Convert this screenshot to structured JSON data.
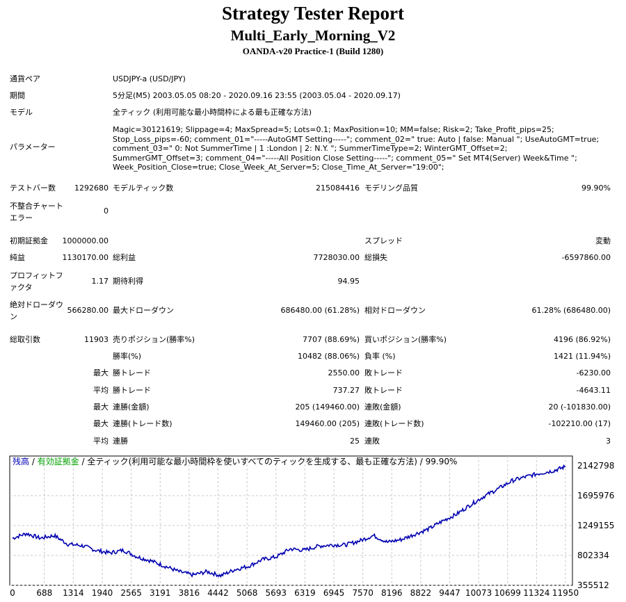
{
  "header": {
    "title": "Strategy Tester Report",
    "ea_name": "Multi_Early_Morning_V2",
    "server": "OANDA-v20 Practice-1 (Build 1280)"
  },
  "info": {
    "symbol_label": "通貨ペア",
    "symbol_value": "USDJPY-a (USD/JPY)",
    "period_label": "期間",
    "period_value": "5分足(M5) 2003.05.05 08:20 - 2020.09.16 23:55 (2003.05.04 - 2020.09.17)",
    "model_label": "モデル",
    "model_value": "全ティック (利用可能な最小時間枠による最も正確な方法)",
    "params_label": "パラメーター",
    "params_value": "Magic=30121619; Slippage=4; MaxSpread=5; Lots=0.1; MaxPosition=10; MM=false; Risk=2; Take_Profit_pips=25; Stop_Loss_pips=-60; comment_01=\"-----AutoGMT Setting-----\"; comment_02=\" true: Auto | false: Manual \"; UseAutoGMT=true; comment_03=\" 0: Not SummerTime | 1 :London | 2: N.Y. \"; SummerTimeType=2; WinterGMT_Offset=2; SummerGMT_Offset=3; comment_04=\"-----All Position Close Setting-----\"; comment_05=\" Set MT4(Server) Week&Time \"; Week_Position_Close=true; Close_Week_At_Server=5; Close_Time_At_Server=\"19:00\";"
  },
  "stats": {
    "bars_label": "テストバー数",
    "bars_value": "1292680",
    "ticks_label": "モデルティック数",
    "ticks_value": "215084416",
    "quality_label": "モデリング品質",
    "quality_value": "99.90%",
    "mismatch_label": "不整合チャートエラー",
    "mismatch_value": "0",
    "deposit_label": "初期証拠金",
    "deposit_value": "1000000.00",
    "spread_label": "スプレッド",
    "spread_value": "変動",
    "net_label": "純益",
    "net_value": "1130170.00",
    "gross_profit_label": "総利益",
    "gross_profit_value": "7728030.00",
    "gross_loss_label": "総損失",
    "gross_loss_value": "-6597860.00",
    "pf_label": "プロフィットファクタ",
    "pf_value": "1.17",
    "payoff_label": "期待利得",
    "payoff_value": "94.95",
    "abs_dd_label": "絶対ドローダウン",
    "abs_dd_value": "566280.00",
    "max_dd_label": "最大ドローダウン",
    "max_dd_value": "686480.00 (61.28%)",
    "rel_dd_label": "相対ドローダウン",
    "rel_dd_value": "61.28% (686480.00)",
    "total_label": "総取引数",
    "total_value": "11903",
    "short_label": "売りポジション(勝率%)",
    "short_value": "7707 (88.69%)",
    "long_label": "買いポジション(勝率%)",
    "long_value": "4196 (86.92%)",
    "win_label": "勝率(%)",
    "win_value": "10482 (88.06%)",
    "loss_label": "負率 (%)",
    "loss_value": "1421 (11.94%)",
    "largest_label": "最大",
    "largest_win_label": "勝トレード",
    "largest_win_value": "2550.00",
    "largest_loss_label": "敗トレード",
    "largest_loss_value": "-6230.00",
    "average_label": "平均",
    "average_win_label": "勝トレード",
    "average_win_value": "737.27",
    "average_loss_label": "敗トレード",
    "average_loss_value": "-4643.11",
    "max1_label": "最大",
    "max_cons_wins_label": "連勝(金額)",
    "max_cons_wins_value": "205 (149460.00)",
    "max_cons_losses_label": "連敗(金額)",
    "max_cons_losses_value": "20 (-101830.00)",
    "max2_label": "最大",
    "max_cons_profit_label": "連勝(トレード数)",
    "max_cons_profit_value": "149460.00 (205)",
    "max_cons_loss_label": "連敗(トレード数)",
    "max_cons_loss_value": "-102210.00 (17)",
    "avg2_label": "平均",
    "avg_cons_wins_label": "連勝",
    "avg_cons_wins_value": "25",
    "avg_cons_losses_label": "連敗",
    "avg_cons_losses_value": "3"
  },
  "chart_legend": {
    "balance": "残高",
    "sep1": " / ",
    "equity": "有効証拠金",
    "sep2": " / ",
    "desc": "全ティック(利用可能な最小時間枠を使いすべてのティックを生成する、最も正確な方法) / 99.90%"
  },
  "chart_data": {
    "type": "line",
    "x_ticks": [
      "0",
      "688",
      "1314",
      "1940",
      "2565",
      "3191",
      "3816",
      "4442",
      "5068",
      "5693",
      "6319",
      "6945",
      "7570",
      "8196",
      "8822",
      "9447",
      "10073",
      "10699",
      "11324",
      "11950"
    ],
    "y_ticks": [
      "2142798",
      "1695976",
      "1249155",
      "802334",
      "355512"
    ],
    "ylim": [
      355512,
      2142798
    ],
    "xlim": [
      0,
      11950
    ],
    "colors": {
      "balance": "#0000b0",
      "equity": "#00a000",
      "grid": "#c8c8c8"
    },
    "series": [
      {
        "name": "残高",
        "x": [
          0,
          300,
          600,
          900,
          1200,
          1500,
          1800,
          2100,
          2400,
          2700,
          3000,
          3300,
          3600,
          3900,
          4200,
          4500,
          4800,
          5100,
          5400,
          5700,
          6000,
          6300,
          6600,
          6900,
          7200,
          7500,
          7800,
          8100,
          8400,
          8700,
          9000,
          9300,
          9600,
          9900,
          10200,
          10500,
          10800,
          11100,
          11400,
          11700,
          11950
        ],
        "y": [
          1060000,
          1130000,
          1060000,
          1100000,
          970000,
          950000,
          880000,
          840000,
          880000,
          780000,
          720000,
          640000,
          560000,
          510000,
          560000,
          500000,
          590000,
          640000,
          740000,
          780000,
          900000,
          880000,
          940000,
          960000,
          960000,
          1020000,
          1100000,
          1000000,
          1040000,
          1120000,
          1200000,
          1320000,
          1420000,
          1560000,
          1690000,
          1800000,
          1920000,
          1980000,
          2030000,
          2070000,
          2130000
        ]
      }
    ]
  }
}
